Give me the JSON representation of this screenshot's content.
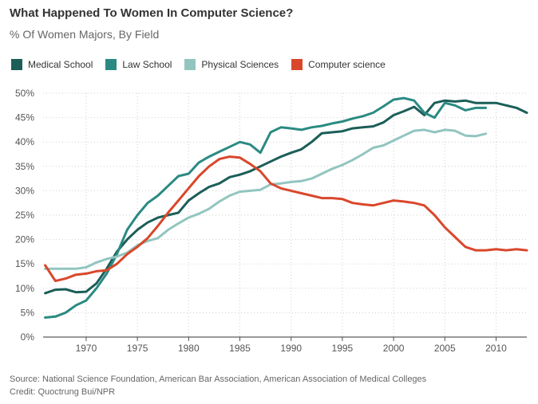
{
  "title": "What Happened To Women In Computer Science?",
  "subtitle": "% Of Women Majors, By Field",
  "source": "Source: National Science Foundation, American Bar Association, American Association of Medical Colleges",
  "credit": "Credit: Quoctrung Bui/NPR",
  "chart_data": {
    "type": "line",
    "ylim": [
      0,
      50
    ],
    "xlim": [
      1965.8,
      2013
    ],
    "y_ticks": [
      0,
      5,
      10,
      15,
      20,
      25,
      30,
      35,
      40,
      45,
      50
    ],
    "y_tick_labels": [
      "0%",
      "5%",
      "10%",
      "15%",
      "20%",
      "25%",
      "30%",
      "35%",
      "40%",
      "45%",
      "50%"
    ],
    "x_ticks": [
      1970,
      1975,
      1980,
      1985,
      1990,
      1995,
      2000,
      2005,
      2010
    ],
    "x_tick_labels": [
      "1970",
      "1975",
      "1980",
      "1985",
      "1990",
      "1995",
      "2000",
      "2005",
      "2010"
    ],
    "grid": true,
    "legend_position": "top-left",
    "series": [
      {
        "name": "Medical School",
        "color": "#1b5e58",
        "points": [
          [
            1966,
            9.0
          ],
          [
            1967,
            9.7
          ],
          [
            1968,
            9.8
          ],
          [
            1969,
            9.2
          ],
          [
            1970,
            9.3
          ],
          [
            1971,
            11.0
          ],
          [
            1972,
            14.0
          ],
          [
            1973,
            17.5
          ],
          [
            1974,
            20.0
          ],
          [
            1975,
            22.0
          ],
          [
            1976,
            23.5
          ],
          [
            1977,
            24.5
          ],
          [
            1978,
            25.0
          ],
          [
            1979,
            25.5
          ],
          [
            1980,
            28.0
          ],
          [
            1981,
            29.5
          ],
          [
            1982,
            30.8
          ],
          [
            1983,
            31.5
          ],
          [
            1984,
            32.8
          ],
          [
            1985,
            33.3
          ],
          [
            1986,
            34.0
          ],
          [
            1987,
            35.0
          ],
          [
            1988,
            36.0
          ],
          [
            1989,
            37.0
          ],
          [
            1990,
            37.8
          ],
          [
            1991,
            38.5
          ],
          [
            1992,
            40.0
          ],
          [
            1993,
            41.8
          ],
          [
            1994,
            42.0
          ],
          [
            1995,
            42.2
          ],
          [
            1996,
            42.8
          ],
          [
            1997,
            43.0
          ],
          [
            1998,
            43.2
          ],
          [
            1999,
            44.0
          ],
          [
            2000,
            45.5
          ],
          [
            2001,
            46.3
          ],
          [
            2002,
            47.2
          ],
          [
            2003,
            45.5
          ],
          [
            2004,
            48.0
          ],
          [
            2005,
            48.5
          ],
          [
            2006,
            48.3
          ],
          [
            2007,
            48.5
          ],
          [
            2008,
            48.0
          ],
          [
            2009,
            48.0
          ],
          [
            2010,
            48.0
          ],
          [
            2011,
            47.5
          ],
          [
            2012,
            47.0
          ],
          [
            2013,
            46.0
          ]
        ]
      },
      {
        "name": "Law School",
        "color": "#2a8a82",
        "points": [
          [
            1966,
            4.0
          ],
          [
            1967,
            4.2
          ],
          [
            1968,
            5.0
          ],
          [
            1969,
            6.5
          ],
          [
            1970,
            7.5
          ],
          [
            1971,
            10.0
          ],
          [
            1972,
            13.0
          ],
          [
            1973,
            17.0
          ],
          [
            1974,
            22.0
          ],
          [
            1975,
            25.0
          ],
          [
            1976,
            27.5
          ],
          [
            1977,
            29.0
          ],
          [
            1978,
            31.0
          ],
          [
            1979,
            33.0
          ],
          [
            1980,
            33.5
          ],
          [
            1981,
            35.8
          ],
          [
            1982,
            37.0
          ],
          [
            1983,
            38.0
          ],
          [
            1984,
            39.0
          ],
          [
            1985,
            40.0
          ],
          [
            1986,
            39.5
          ],
          [
            1987,
            37.8
          ],
          [
            1988,
            42.0
          ],
          [
            1989,
            43.0
          ],
          [
            1990,
            42.8
          ],
          [
            1991,
            42.5
          ],
          [
            1992,
            43.0
          ],
          [
            1993,
            43.3
          ],
          [
            1994,
            43.8
          ],
          [
            1995,
            44.2
          ],
          [
            1996,
            44.8
          ],
          [
            1997,
            45.3
          ],
          [
            1998,
            46.0
          ],
          [
            1999,
            47.3
          ],
          [
            2000,
            48.7
          ],
          [
            2001,
            49.0
          ],
          [
            2002,
            48.5
          ],
          [
            2003,
            46.0
          ],
          [
            2004,
            45.0
          ],
          [
            2005,
            48.0
          ],
          [
            2006,
            47.5
          ],
          [
            2007,
            46.5
          ],
          [
            2008,
            47.0
          ],
          [
            2009,
            47.0
          ]
        ]
      },
      {
        "name": "Physical Sciences",
        "color": "#92c5c0",
        "points": [
          [
            1966,
            14.0
          ],
          [
            1967,
            14.0
          ],
          [
            1968,
            14.0
          ],
          [
            1969,
            14.0
          ],
          [
            1970,
            14.3
          ],
          [
            1971,
            15.3
          ],
          [
            1972,
            16.0
          ],
          [
            1973,
            16.5
          ],
          [
            1974,
            17.3
          ],
          [
            1975,
            18.8
          ],
          [
            1976,
            19.7
          ],
          [
            1977,
            20.3
          ],
          [
            1978,
            22.0
          ],
          [
            1979,
            23.3
          ],
          [
            1980,
            24.5
          ],
          [
            1981,
            25.3
          ],
          [
            1982,
            26.3
          ],
          [
            1983,
            27.8
          ],
          [
            1984,
            29.0
          ],
          [
            1985,
            29.8
          ],
          [
            1986,
            30.0
          ],
          [
            1987,
            30.2
          ],
          [
            1988,
            31.3
          ],
          [
            1989,
            31.5
          ],
          [
            1990,
            31.8
          ],
          [
            1991,
            32.0
          ],
          [
            1992,
            32.5
          ],
          [
            1993,
            33.5
          ],
          [
            1994,
            34.5
          ],
          [
            1995,
            35.3
          ],
          [
            1996,
            36.3
          ],
          [
            1997,
            37.5
          ],
          [
            1998,
            38.8
          ],
          [
            1999,
            39.3
          ],
          [
            2000,
            40.3
          ],
          [
            2001,
            41.3
          ],
          [
            2002,
            42.3
          ],
          [
            2003,
            42.5
          ],
          [
            2004,
            42.0
          ],
          [
            2005,
            42.5
          ],
          [
            2006,
            42.3
          ],
          [
            2007,
            41.3
          ],
          [
            2008,
            41.2
          ],
          [
            2009,
            41.7
          ]
        ]
      },
      {
        "name": "Computer science",
        "color": "#d9472b",
        "points": [
          [
            1966,
            14.7
          ],
          [
            1967,
            11.5
          ],
          [
            1968,
            12.0
          ],
          [
            1969,
            12.8
          ],
          [
            1970,
            13.0
          ],
          [
            1971,
            13.5
          ],
          [
            1972,
            13.7
          ],
          [
            1973,
            15.0
          ],
          [
            1974,
            17.0
          ],
          [
            1975,
            18.5
          ],
          [
            1976,
            20.3
          ],
          [
            1977,
            22.8
          ],
          [
            1978,
            25.5
          ],
          [
            1979,
            28.0
          ],
          [
            1980,
            30.5
          ],
          [
            1981,
            33.0
          ],
          [
            1982,
            35.0
          ],
          [
            1983,
            36.5
          ],
          [
            1984,
            37.0
          ],
          [
            1985,
            36.8
          ],
          [
            1986,
            35.5
          ],
          [
            1987,
            34.0
          ],
          [
            1988,
            31.5
          ],
          [
            1989,
            30.5
          ],
          [
            1990,
            30.0
          ],
          [
            1991,
            29.5
          ],
          [
            1992,
            29.0
          ],
          [
            1993,
            28.5
          ],
          [
            1994,
            28.5
          ],
          [
            1995,
            28.3
          ],
          [
            1996,
            27.5
          ],
          [
            1997,
            27.2
          ],
          [
            1998,
            27.0
          ],
          [
            1999,
            27.5
          ],
          [
            2000,
            28.0
          ],
          [
            2001,
            27.8
          ],
          [
            2002,
            27.5
          ],
          [
            2003,
            27.0
          ],
          [
            2004,
            25.0
          ],
          [
            2005,
            22.5
          ],
          [
            2006,
            20.5
          ],
          [
            2007,
            18.5
          ],
          [
            2008,
            17.8
          ],
          [
            2009,
            17.8
          ],
          [
            2010,
            18.0
          ],
          [
            2011,
            17.8
          ],
          [
            2012,
            18.0
          ],
          [
            2013,
            17.8
          ]
        ]
      }
    ]
  }
}
